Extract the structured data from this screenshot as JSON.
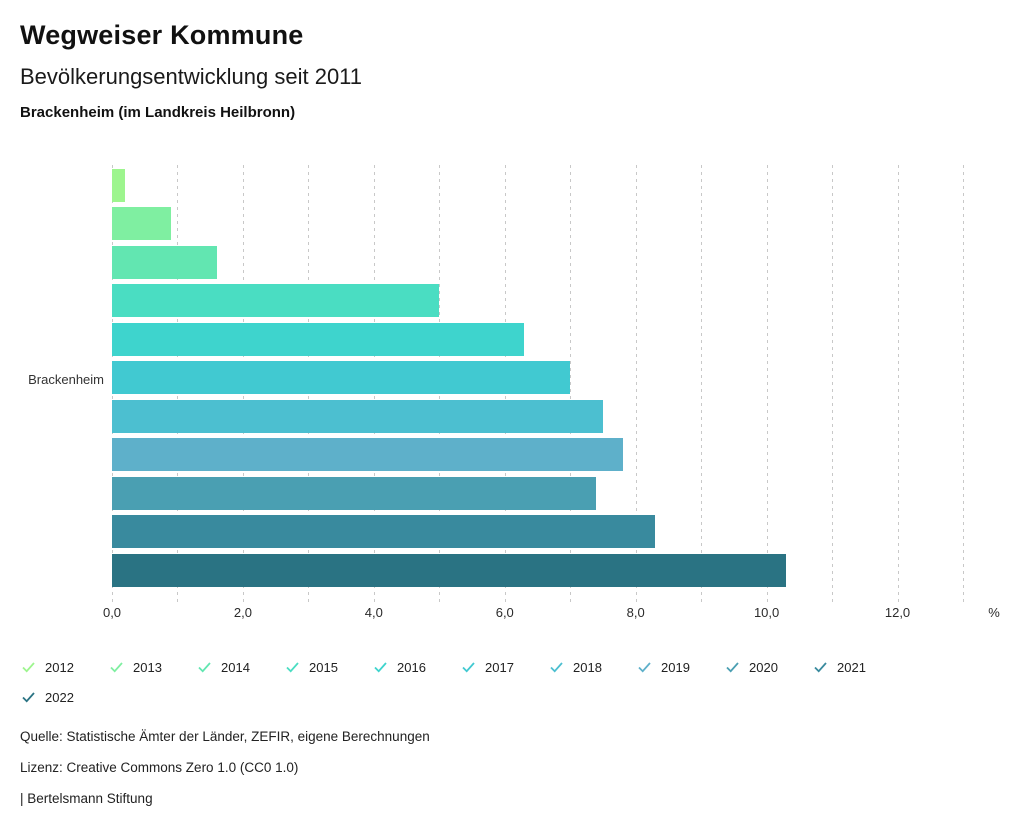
{
  "header": {
    "title": "Wegweiser Kommune",
    "subtitle": "Bevölkerungsentwicklung seit 2011",
    "region": "Brackenheim (im Landkreis Heilbronn)"
  },
  "chart_data": {
    "type": "bar",
    "orientation": "horizontal",
    "title": "Bevölkerungsentwicklung seit 2011",
    "group_label": "Brackenheim",
    "categories": [
      "2012",
      "2013",
      "2014",
      "2015",
      "2016",
      "2017",
      "2018",
      "2019",
      "2020",
      "2021",
      "2022"
    ],
    "values": [
      0.2,
      0.9,
      1.6,
      5.0,
      6.3,
      7.0,
      7.5,
      7.8,
      7.4,
      8.3,
      10.3
    ],
    "colors": [
      "#9DF58E",
      "#7FEFA1",
      "#62E6B1",
      "#4ADDC2",
      "#3ED4CD",
      "#41C9D1",
      "#4CBFD0",
      "#5EB0CA",
      "#4A9FB2",
      "#398A9E",
      "#2A7383"
    ],
    "xlabel": "",
    "ylabel": "Brackenheim",
    "xlim": [
      0,
      13
    ],
    "x_ticks": [
      {
        "label": "0,0",
        "value": 0
      },
      {
        "label": "2,0",
        "value": 2
      },
      {
        "label": "4,0",
        "value": 4
      },
      {
        "label": "6,0",
        "value": 6
      },
      {
        "label": "8,0",
        "value": 8
      },
      {
        "label": "10,0",
        "value": 10
      },
      {
        "label": "12,0",
        "value": 12
      }
    ],
    "unit_label": "%",
    "grid": {
      "axis": "x",
      "interval": 1.0,
      "style": "dashed",
      "color": "#c8c8c8"
    },
    "legend_position": "bottom",
    "legend_icon": "check-mark"
  },
  "footer": {
    "source": "Quelle: Statistische Ämter der Länder, ZEFIR, eigene Berechnungen",
    "license": "Lizenz: Creative Commons Zero 1.0 (CC0 1.0)",
    "attribution": "| Bertelsmann Stiftung"
  }
}
